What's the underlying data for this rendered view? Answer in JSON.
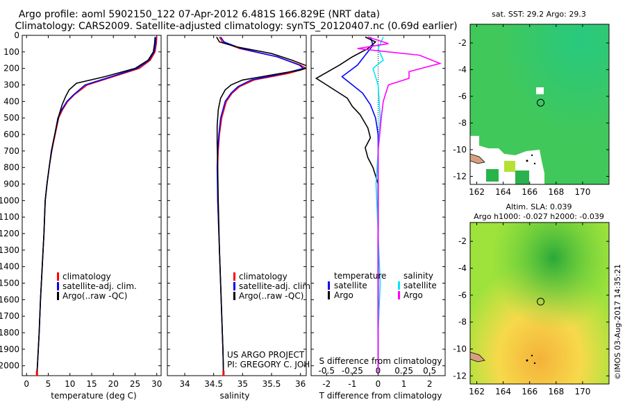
{
  "title": {
    "line1": "Argo profile: aoml 5902150_122 07-Apr-2012 6.481S 166.829E (NRT data)",
    "line2": "Climatology: CARS2009. Satellite-adjusted climatology: synTS_20120407.nc (0.69d earlier)"
  },
  "colors": {
    "climatology": "#ff0000",
    "satellite": "#0000ff",
    "argo": "#000000",
    "sal_satellite": "#00e5ff",
    "sal_argo": "#ff00ff"
  },
  "chart_data": [
    {
      "type": "line",
      "panel": "temperature",
      "xlabel": "temperature (deg C)",
      "xlim": [
        -1,
        31
      ],
      "xticks": [
        0,
        5,
        10,
        15,
        20,
        25,
        30
      ],
      "ylim": [
        2060,
        0
      ],
      "yticks": [
        0,
        100,
        200,
        300,
        400,
        500,
        600,
        700,
        800,
        900,
        1000,
        1100,
        1200,
        1300,
        1400,
        1500,
        1600,
        1700,
        1800,
        1900,
        2000
      ],
      "legend": [
        "climatology",
        "satellite-adj. clim.",
        "Argo(..raw -QC)"
      ],
      "series": [
        {
          "name": "climatology",
          "color": "#ff0000",
          "points": [
            [
              30,
              10
            ],
            [
              29.9,
              50
            ],
            [
              29.6,
              100
            ],
            [
              28.5,
              150
            ],
            [
              26,
              200
            ],
            [
              20,
              250
            ],
            [
              14,
              300
            ],
            [
              11,
              360
            ],
            [
              9.5,
              400
            ],
            [
              8.3,
              450
            ],
            [
              7.4,
              500
            ],
            [
              6.6,
              600
            ],
            [
              5.8,
              700
            ],
            [
              5.2,
              800
            ],
            [
              4.7,
              900
            ],
            [
              4.3,
              1000
            ],
            [
              4,
              1200
            ],
            [
              3.6,
              1400
            ],
            [
              3.2,
              1600
            ],
            [
              2.9,
              1800
            ],
            [
              2.5,
              2000
            ],
            [
              2.4,
              2045
            ]
          ]
        },
        {
          "name": "satellite-adj. clim.",
          "color": "#0000ff",
          "points": [
            [
              29.8,
              10
            ],
            [
              29.7,
              50
            ],
            [
              29.4,
              100
            ],
            [
              28.2,
              150
            ],
            [
              25.5,
              200
            ],
            [
              19.5,
              250
            ],
            [
              13.5,
              300
            ],
            [
              10.8,
              360
            ],
            [
              9.3,
              400
            ],
            [
              8.1,
              450
            ],
            [
              7.2,
              500
            ],
            [
              6.5,
              600
            ],
            [
              5.7,
              700
            ],
            [
              5.2,
              800
            ],
            [
              4.7,
              900
            ],
            [
              4.3,
              1000
            ],
            [
              4,
              1200
            ],
            [
              3.6,
              1400
            ],
            [
              3.2,
              1600
            ],
            [
              2.9,
              1800
            ],
            [
              2.5,
              2000
            ],
            [
              2.4,
              2045
            ]
          ]
        },
        {
          "name": "Argo(..raw -QC)",
          "color": "#000000",
          "points": [
            [
              29.6,
              10
            ],
            [
              29.5,
              50
            ],
            [
              29.2,
              100
            ],
            [
              28,
              150
            ],
            [
              25,
              200
            ],
            [
              18,
              250
            ],
            [
              11.5,
              290
            ],
            [
              9.8,
              330
            ],
            [
              9,
              370
            ],
            [
              8.2,
              420
            ],
            [
              7.5,
              480
            ],
            [
              6.8,
              560
            ],
            [
              6.1,
              650
            ],
            [
              5.6,
              730
            ],
            [
              5.3,
              780
            ],
            [
              4.8,
              880
            ],
            [
              4.3,
              1000
            ],
            [
              4,
              1200
            ],
            [
              3.6,
              1400
            ],
            [
              3.2,
              1600
            ],
            [
              2.9,
              1800
            ],
            [
              2.5,
              2000
            ],
            [
              2.4,
              2045
            ]
          ]
        }
      ]
    },
    {
      "type": "line",
      "panel": "salinity",
      "xlabel": "salinity",
      "xlim": [
        33.7,
        36.1
      ],
      "xticks": [
        34,
        34.5,
        35,
        35.5,
        36
      ],
      "xtick_labels": [
        "34",
        "34.5",
        "35",
        "35.5",
        "36"
      ],
      "ylim": [
        2060,
        0
      ],
      "legend": [
        "climatology",
        "satellite-adj. clim.",
        "Argo(..raw -QC)"
      ],
      "annotations": [
        "US ARGO PROJECT",
        "PI: GREGORY C. JOHNSON"
      ],
      "series": [
        {
          "name": "climatology",
          "color": "#ff0000",
          "points": [
            [
              34.6,
              10
            ],
            [
              34.65,
              40
            ],
            [
              34.95,
              80
            ],
            [
              35.6,
              130
            ],
            [
              36.0,
              180
            ],
            [
              36.1,
              200
            ],
            [
              35.8,
              230
            ],
            [
              35.2,
              270
            ],
            [
              34.95,
              310
            ],
            [
              34.82,
              350
            ],
            [
              34.72,
              400
            ],
            [
              34.64,
              500
            ],
            [
              34.6,
              600
            ],
            [
              34.58,
              700
            ],
            [
              34.57,
              800
            ],
            [
              34.57,
              1000
            ],
            [
              34.6,
              1300
            ],
            [
              34.63,
              1600
            ],
            [
              34.66,
              1900
            ],
            [
              34.67,
              2045
            ]
          ]
        },
        {
          "name": "satellite-adj. clim.",
          "color": "#0000ff",
          "points": [
            [
              34.62,
              10
            ],
            [
              34.68,
              40
            ],
            [
              34.98,
              80
            ],
            [
              35.6,
              130
            ],
            [
              35.98,
              180
            ],
            [
              36.05,
              200
            ],
            [
              35.72,
              230
            ],
            [
              35.15,
              270
            ],
            [
              34.92,
              310
            ],
            [
              34.8,
              350
            ],
            [
              34.7,
              400
            ],
            [
              34.62,
              500
            ],
            [
              34.59,
              600
            ],
            [
              34.57,
              700
            ],
            [
              34.56,
              800
            ],
            [
              34.57,
              1000
            ],
            [
              34.6,
              1300
            ],
            [
              34.63,
              1600
            ],
            [
              34.66,
              1900
            ],
            [
              34.67,
              2045
            ]
          ]
        },
        {
          "name": "Argo(..raw -QC)",
          "color": "#000000",
          "points": [
            [
              34.55,
              10
            ],
            [
              34.6,
              40
            ],
            [
              34.9,
              70
            ],
            [
              35.5,
              110
            ],
            [
              35.85,
              150
            ],
            [
              36.15,
              190
            ],
            [
              36.0,
              210
            ],
            [
              35.5,
              240
            ],
            [
              35.0,
              270
            ],
            [
              34.8,
              300
            ],
            [
              34.7,
              330
            ],
            [
              34.62,
              380
            ],
            [
              34.58,
              450
            ],
            [
              34.56,
              550
            ],
            [
              34.56,
              650
            ],
            [
              34.57,
              800
            ],
            [
              34.58,
              1000
            ],
            [
              34.6,
              1300
            ],
            [
              34.63,
              1600
            ],
            [
              34.66,
              1900
            ],
            [
              34.67,
              2045
            ]
          ]
        }
      ]
    },
    {
      "type": "line",
      "panel": "difference",
      "xlabel": "T difference from climatology",
      "xlabel_top": "S difference from climatology",
      "xlim_T": [
        -2.6,
        2.6
      ],
      "xticks_T": [
        -2,
        -1,
        0,
        1,
        2
      ],
      "xticks_S": [
        -0.5,
        -0.25,
        0,
        0.25,
        0.5
      ],
      "xtick_labels_S": [
        "-0.5",
        "-0.25",
        "0",
        "0.25",
        "0.5"
      ],
      "legend": {
        "temperature": "temperature",
        "salinity": "salinity",
        "items": [
          "satellite",
          "Argo",
          "satellite",
          "Argo"
        ]
      },
      "series": [
        {
          "name": "T satellite",
          "color": "#0000ff",
          "points": [
            [
              -0.3,
              10
            ],
            [
              -0.2,
              60
            ],
            [
              -0.5,
              120
            ],
            [
              -0.8,
              180
            ],
            [
              -1.4,
              250
            ],
            [
              -1.0,
              300
            ],
            [
              -0.6,
              350
            ],
            [
              -0.3,
              420
            ],
            [
              -0.1,
              500
            ],
            [
              0,
              600
            ],
            [
              0,
              800
            ],
            [
              0,
              2045
            ]
          ]
        },
        {
          "name": "T Argo",
          "color": "#000000",
          "points": [
            [
              -0.5,
              10
            ],
            [
              -0.1,
              40
            ],
            [
              -0.4,
              80
            ],
            [
              -1.0,
              130
            ],
            [
              -1.5,
              180
            ],
            [
              -2.4,
              260
            ],
            [
              -2.0,
              300
            ],
            [
              -1.6,
              340
            ],
            [
              -1.2,
              380
            ],
            [
              -1.0,
              430
            ],
            [
              -0.7,
              480
            ],
            [
              -0.4,
              560
            ],
            [
              -0.3,
              620
            ],
            [
              -0.5,
              680
            ],
            [
              -0.4,
              740
            ],
            [
              -0.2,
              800
            ],
            [
              0,
              900
            ],
            [
              0,
              2045
            ]
          ]
        },
        {
          "name": "S satellite",
          "color": "#00e5ff",
          "points": [
            [
              0.05,
              10
            ],
            [
              0.0,
              80
            ],
            [
              0.05,
              150
            ],
            [
              -0.05,
              200
            ],
            [
              0.0,
              300
            ],
            [
              0.02,
              500
            ],
            [
              0.0,
              700
            ],
            [
              -0.02,
              900
            ],
            [
              0.0,
              1200
            ],
            [
              0.02,
              1500
            ],
            [
              0.0,
              1800
            ],
            [
              0.0,
              2045
            ]
          ]
        },
        {
          "name": "S Argo",
          "color": "#ff00ff",
          "points": [
            [
              -0.1,
              10
            ],
            [
              0.1,
              50
            ],
            [
              -0.2,
              80
            ],
            [
              0.4,
              120
            ],
            [
              0.6,
              170
            ],
            [
              0.3,
              220
            ],
            [
              0.3,
              260
            ],
            [
              0.1,
              300
            ],
            [
              0.05,
              400
            ],
            [
              0.03,
              500
            ],
            [
              0.0,
              700
            ],
            [
              0.0,
              2045
            ]
          ]
        }
      ]
    }
  ],
  "maps": {
    "sst": {
      "title": "sat. SST: 29.2 Argo: 29.3",
      "xticks": [
        "162",
        "164",
        "166",
        "168",
        "170"
      ],
      "yticks": [
        "-2",
        "-4",
        "-6",
        "-8",
        "-10",
        "-12"
      ],
      "lon_range": [
        161.5,
        172
      ],
      "lat_range": [
        -12.6,
        -0.6
      ],
      "marker": {
        "lon": 166.83,
        "lat": -6.48
      }
    },
    "sla": {
      "title1": "Altim. SLA: 0.039",
      "title2": "Argo h1000: -0.027 h2000: -0.039",
      "xticks": [
        "162",
        "164",
        "166",
        "168",
        "170"
      ],
      "yticks": [
        "-2",
        "-4",
        "-6",
        "-8",
        "-10",
        "-12"
      ],
      "lon_range": [
        161.5,
        172
      ],
      "lat_range": [
        -12.6,
        -0.6
      ],
      "marker": {
        "lon": 166.83,
        "lat": -6.48
      }
    }
  },
  "credit": "©IMOS 03-Aug-2017 14:35:21"
}
